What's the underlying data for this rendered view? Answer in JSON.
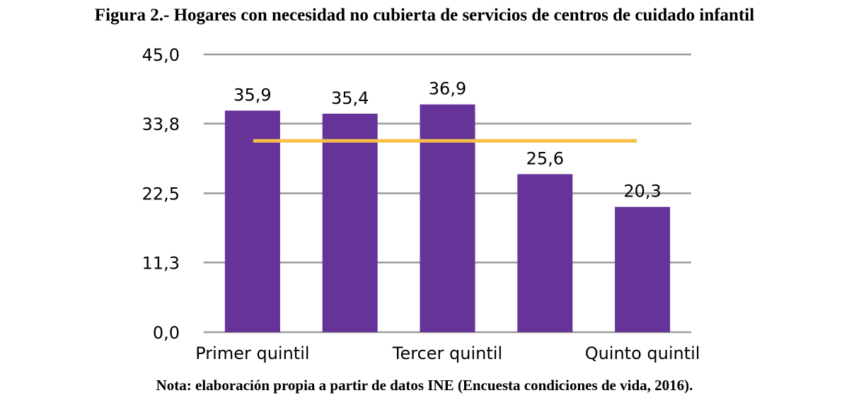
{
  "chart_data": {
    "type": "bar",
    "title": "Figura 2.- Hogares con necesidad no cubierta de servicios de centros de cuidado infantil",
    "categories": [
      "Primer quintil",
      "",
      "Tercer quintil",
      "",
      "Quinto quintil"
    ],
    "values": [
      35.9,
      35.4,
      36.9,
      25.6,
      20.3
    ],
    "value_labels": [
      "35,9",
      "35,4",
      "36,9",
      "25,6",
      "20,3"
    ],
    "reference_line": 31.0,
    "ylim": [
      0,
      45.0
    ],
    "yticks": [
      0,
      11.3,
      22.5,
      33.8,
      45.0
    ],
    "ytick_labels": [
      "0,0",
      "11,3",
      "22,5",
      "33,8",
      "45,0"
    ],
    "grid": true,
    "colors": {
      "bar": "#663399",
      "reference_line": "#f4c04a",
      "grid": "#9a9a9a"
    }
  },
  "note": "Nota: elaboración propia a partir de datos INE (Encuesta condiciones de vida, 2016)."
}
